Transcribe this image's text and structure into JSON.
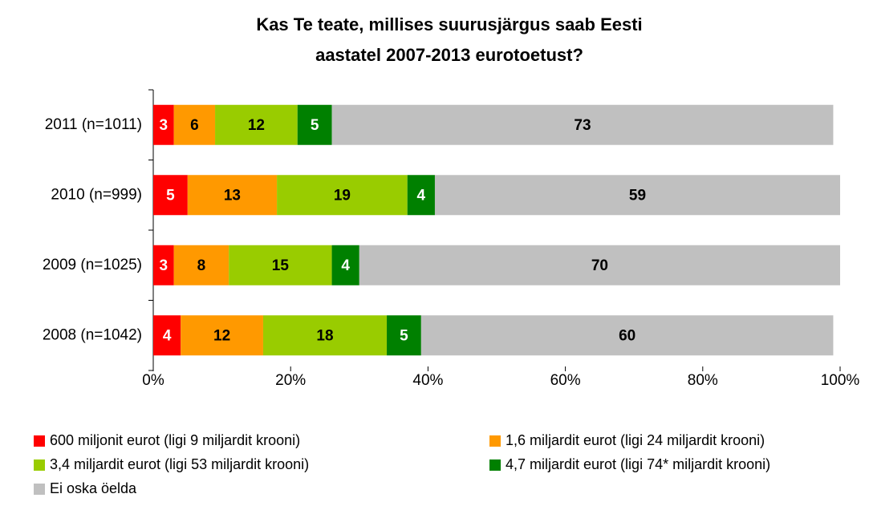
{
  "chart_data": {
    "type": "stacked_bar_horizontal",
    "title": [
      "Kas Te teate, millises suurusjärgus saab Eesti",
      "aastatel 2007-2013 eurotoetust?"
    ],
    "categories": [
      "2011 (n=1011)",
      "2010 (n=999)",
      "2009 (n=1025)",
      "2008 (n=1042)"
    ],
    "series": [
      {
        "name": "600 miljonit eurot (ligi 9 miljardit krooni)",
        "color": "#ff0000",
        "values": [
          3,
          5,
          3,
          4
        ]
      },
      {
        "name": "1,6 miljardit eurot (ligi 24 miljardit krooni)",
        "color": "#ff9900",
        "values": [
          6,
          13,
          8,
          12
        ]
      },
      {
        "name": "3,4 miljardit eurot (ligi 53 miljardit krooni)",
        "color": "#99cc00",
        "values": [
          12,
          19,
          15,
          18
        ]
      },
      {
        "name": "4,7 miljardit eurot (ligi 74* miljardit krooni)",
        "color": "#008000",
        "values": [
          5,
          4,
          4,
          5
        ]
      },
      {
        "name": "Ei oska öelda",
        "color": "#c0c0c0",
        "values": [
          73,
          59,
          70,
          60
        ]
      }
    ],
    "xlim": [
      0,
      100
    ],
    "xticks": [
      {
        "value": 0,
        "label": "0%"
      },
      {
        "value": 20,
        "label": "20%"
      },
      {
        "value": 40,
        "label": "40%"
      },
      {
        "value": 60,
        "label": "60%"
      },
      {
        "value": 80,
        "label": "80%"
      },
      {
        "value": 100,
        "label": "100%"
      }
    ]
  }
}
